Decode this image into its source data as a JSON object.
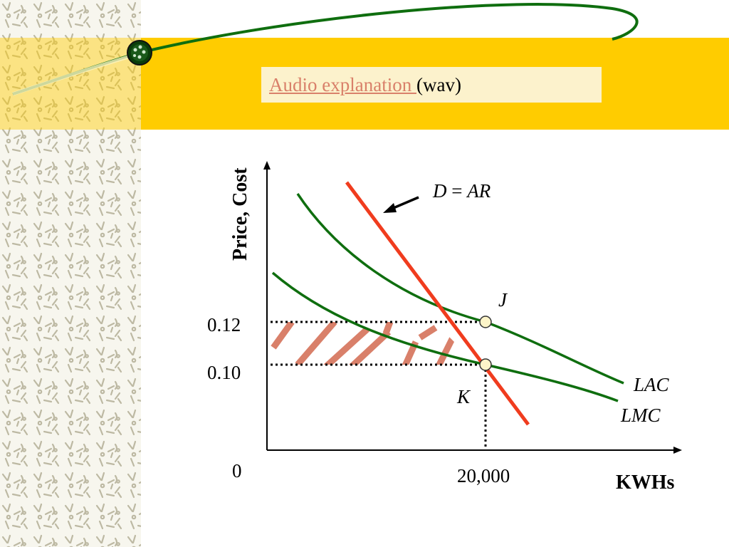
{
  "audio": {
    "link_text": "Audio explanation ",
    "suffix": "(wav)"
  },
  "colors": {
    "band": "#ffcc00",
    "demand": "#f03c1e",
    "cost_curves": "#0f6e0f",
    "hatch": "#d9806a",
    "point_fill": "#fdf5c9"
  },
  "diagram": {
    "y_axis_label": "Price, Cost",
    "x_axis_label": "KWHs",
    "origin_label": "0",
    "price_high": "0.12",
    "price_low": "0.10",
    "quantity_label": "20,000",
    "demand_label_d": "D",
    "demand_label_eq": " = ",
    "demand_label_ar": "AR",
    "point_j": "J",
    "point_k": "K",
    "lac_label": "LAC",
    "lmc_label": "LMC"
  },
  "icons": {
    "slide_bullet": "green-orb-icon",
    "arrow": "arrow-icon"
  }
}
